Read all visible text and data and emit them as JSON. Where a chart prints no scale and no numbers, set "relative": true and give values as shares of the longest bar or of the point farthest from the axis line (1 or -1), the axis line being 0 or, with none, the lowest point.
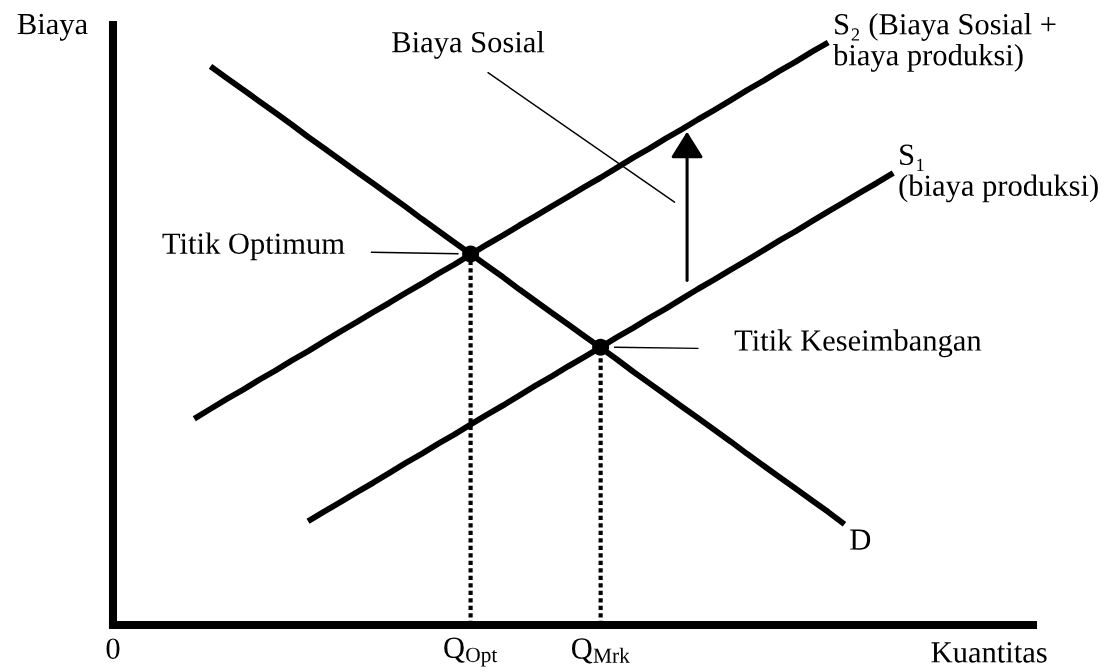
{
  "chart_data": {
    "type": "line",
    "relative": true,
    "xlabel": "Kuantitas",
    "ylabel": "Biaya",
    "categories": [
      "0",
      null,
      null,
      null,
      null,
      null,
      null,
      null,
      null,
      null,
      null,
      null,
      null,
      null,
      null,
      null,
      null,
      null,
      null,
      null,
      null,
      null,
      "Q$_{Opt}$",
      null,
      null,
      null,
      null,
      null,
      null,
      null,
      "Q$_{Mrk}$",
      null,
      null,
      null,
      null,
      null,
      null,
      null,
      null,
      null,
      null,
      null,
      null,
      null,
      null,
      null,
      null,
      null,
      null,
      null,
      null,
      null,
      null,
      null,
      null,
      null,
      null
    ],
    "series": [
      {
        "name": "D",
        "color": "#000000",
        "values": [
          null,
          null,
          null,
          null,
          null,
          null,
          0.959,
          0.939,
          0.919,
          0.899,
          0.879,
          0.859,
          0.838,
          0.818,
          0.798,
          0.778,
          0.758,
          0.738,
          0.718,
          0.697,
          0.677,
          0.657,
          0.637,
          0.617,
          0.597,
          0.576,
          0.556,
          0.536,
          0.516,
          0.496,
          0.476,
          0.456,
          0.435,
          0.415,
          0.395,
          0.375,
          0.355,
          0.335,
          0.315,
          0.294,
          0.274,
          0.254,
          0.234,
          0.214,
          0.194,
          0.173,
          null,
          null,
          null,
          null,
          null,
          null,
          null,
          null,
          null,
          null,
          null
        ]
      },
      {
        "name": "S₂ (Biaya Sosial +\nbiaya produksi)",
        "color": "#000000",
        "values": [
          null,
          null,
          null,
          null,
          null,
          0.354,
          0.371,
          0.388,
          0.404,
          0.421,
          0.437,
          0.454,
          0.47,
          0.487,
          0.504,
          0.52,
          0.537,
          0.553,
          0.57,
          0.586,
          0.603,
          0.619,
          0.636,
          0.653,
          0.669,
          0.686,
          0.702,
          0.719,
          0.735,
          0.752,
          0.768,
          0.785,
          0.802,
          0.818,
          0.835,
          0.851,
          0.868,
          0.884,
          0.901,
          0.918,
          0.934,
          0.951,
          0.967,
          0.984,
          1.0,
          null,
          null,
          null,
          null,
          null,
          null,
          null,
          null,
          null,
          null,
          null,
          null
        ]
      },
      {
        "name": "S₁\n(biaya produksi)",
        "color": "#000000",
        "values": [
          null,
          null,
          null,
          null,
          null,
          null,
          null,
          null,
          null,
          null,
          null,
          null,
          0.178,
          0.195,
          0.211,
          0.228,
          0.244,
          0.261,
          0.278,
          0.294,
          0.311,
          0.327,
          0.344,
          0.361,
          0.377,
          0.394,
          0.411,
          0.427,
          0.444,
          0.46,
          0.477,
          0.494,
          0.51,
          0.527,
          0.543,
          0.56,
          0.577,
          0.593,
          0.61,
          0.626,
          0.643,
          0.66,
          0.676,
          0.693,
          0.71,
          0.726,
          0.743,
          0.759,
          0.776,
          null,
          null,
          null,
          null,
          null,
          null,
          null,
          null
        ]
      },
      {
        "type": "lollipop",
        "color": "#000000",
        "line_style": "dotted",
        "marker": "circle",
        "values": [
          null,
          null,
          null,
          null,
          null,
          null,
          null,
          null,
          null,
          null,
          null,
          null,
          null,
          null,
          null,
          null,
          null,
          null,
          null,
          null,
          null,
          null,
          0.637,
          null,
          null,
          null,
          null,
          null,
          null,
          null,
          0.477,
          null,
          null,
          null,
          null,
          null,
          null,
          null,
          null,
          null,
          null,
          null,
          null,
          null,
          null,
          null,
          null,
          null,
          null,
          null,
          null,
          null,
          null,
          null,
          null,
          null,
          null
        ]
      }
    ],
    "annotations": [
      "Biaya Sosial",
      "Titik Optimum",
      "Titik Keseimbangan"
    ]
  }
}
